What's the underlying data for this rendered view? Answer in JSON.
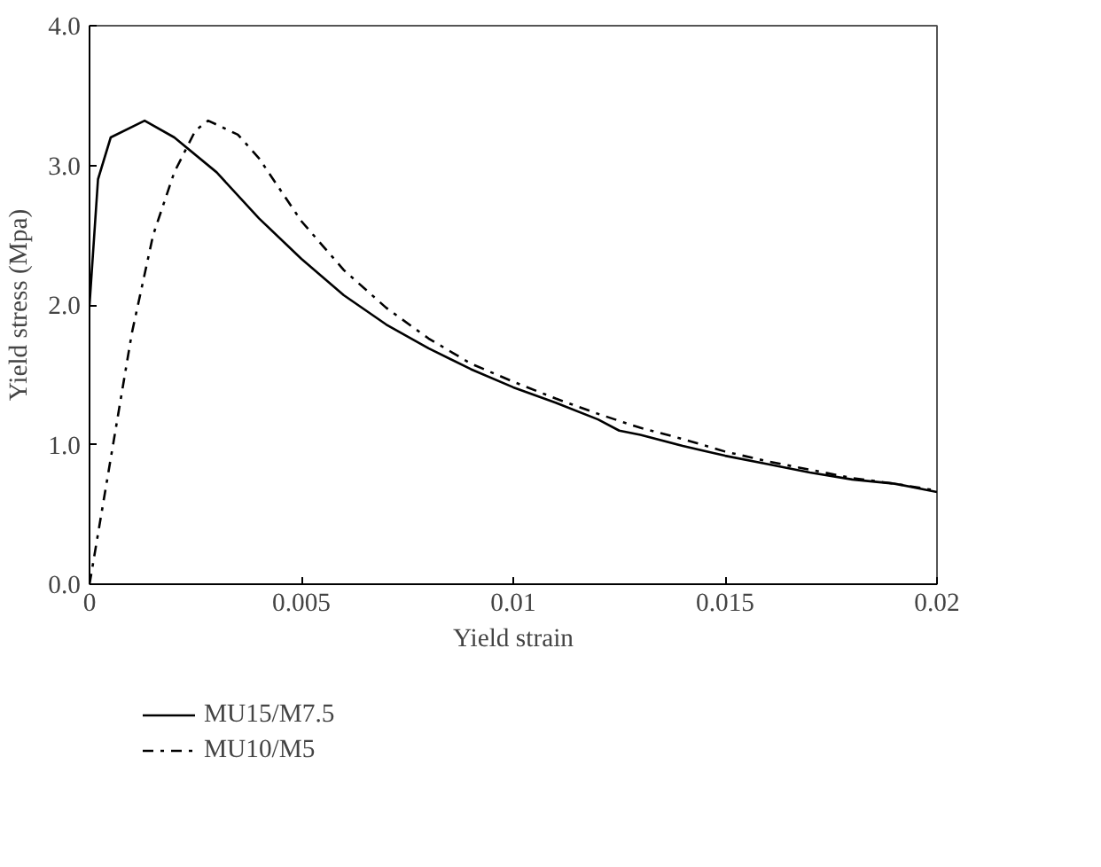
{
  "chart_data": {
    "type": "line",
    "xlabel": "Yield strain",
    "ylabel": "Yield stress (Mpa)",
    "xlim": [
      0,
      0.02
    ],
    "xticks": [
      0,
      0.005,
      0.01,
      0.015,
      0.02
    ],
    "ylim": [
      0,
      4
    ],
    "yticks": [
      {
        "value": 0,
        "label": "0.0"
      },
      {
        "value": 1,
        "label": "1.0"
      },
      {
        "value": 2,
        "label": "2.0"
      },
      {
        "value": 3,
        "label": "3.0"
      },
      {
        "value": 4,
        "label": "4.0"
      }
    ],
    "grid": false,
    "legend": "bottom left",
    "marker": "none",
    "series": [
      {
        "name": "MU15/M7.5",
        "color": "#000000",
        "line_style": "solid",
        "x": [
          0,
          0.0002,
          0.0005,
          0.0013,
          0.002,
          0.003,
          0.004,
          0.005,
          0.006,
          0.007,
          0.008,
          0.009,
          0.01,
          0.011,
          0.012,
          0.0125,
          0.013,
          0.014,
          0.015,
          0.016,
          0.017,
          0.018,
          0.019,
          0.02
        ],
        "values": [
          2.0,
          2.9,
          3.2,
          3.32,
          3.2,
          2.95,
          2.62,
          2.33,
          2.07,
          1.86,
          1.69,
          1.54,
          1.41,
          1.3,
          1.18,
          1.1,
          1.07,
          0.99,
          0.92,
          0.86,
          0.8,
          0.75,
          0.72,
          0.66
        ]
      },
      {
        "name": "MU10/M5",
        "color": "#000000",
        "line_style": "dashdot",
        "x": [
          0,
          0.0005,
          0.001,
          0.0015,
          0.002,
          0.0025,
          0.0028,
          0.0035,
          0.004,
          0.005,
          0.006,
          0.007,
          0.008,
          0.009,
          0.01,
          0.011,
          0.012,
          0.013,
          0.014,
          0.015,
          0.016,
          0.017,
          0.018,
          0.019,
          0.02
        ],
        "values": [
          0,
          0.9,
          1.8,
          2.5,
          2.95,
          3.25,
          3.32,
          3.22,
          3.05,
          2.6,
          2.25,
          1.98,
          1.76,
          1.58,
          1.45,
          1.33,
          1.22,
          1.12,
          1.04,
          0.95,
          0.88,
          0.82,
          0.76,
          0.72,
          0.67
        ]
      }
    ]
  }
}
